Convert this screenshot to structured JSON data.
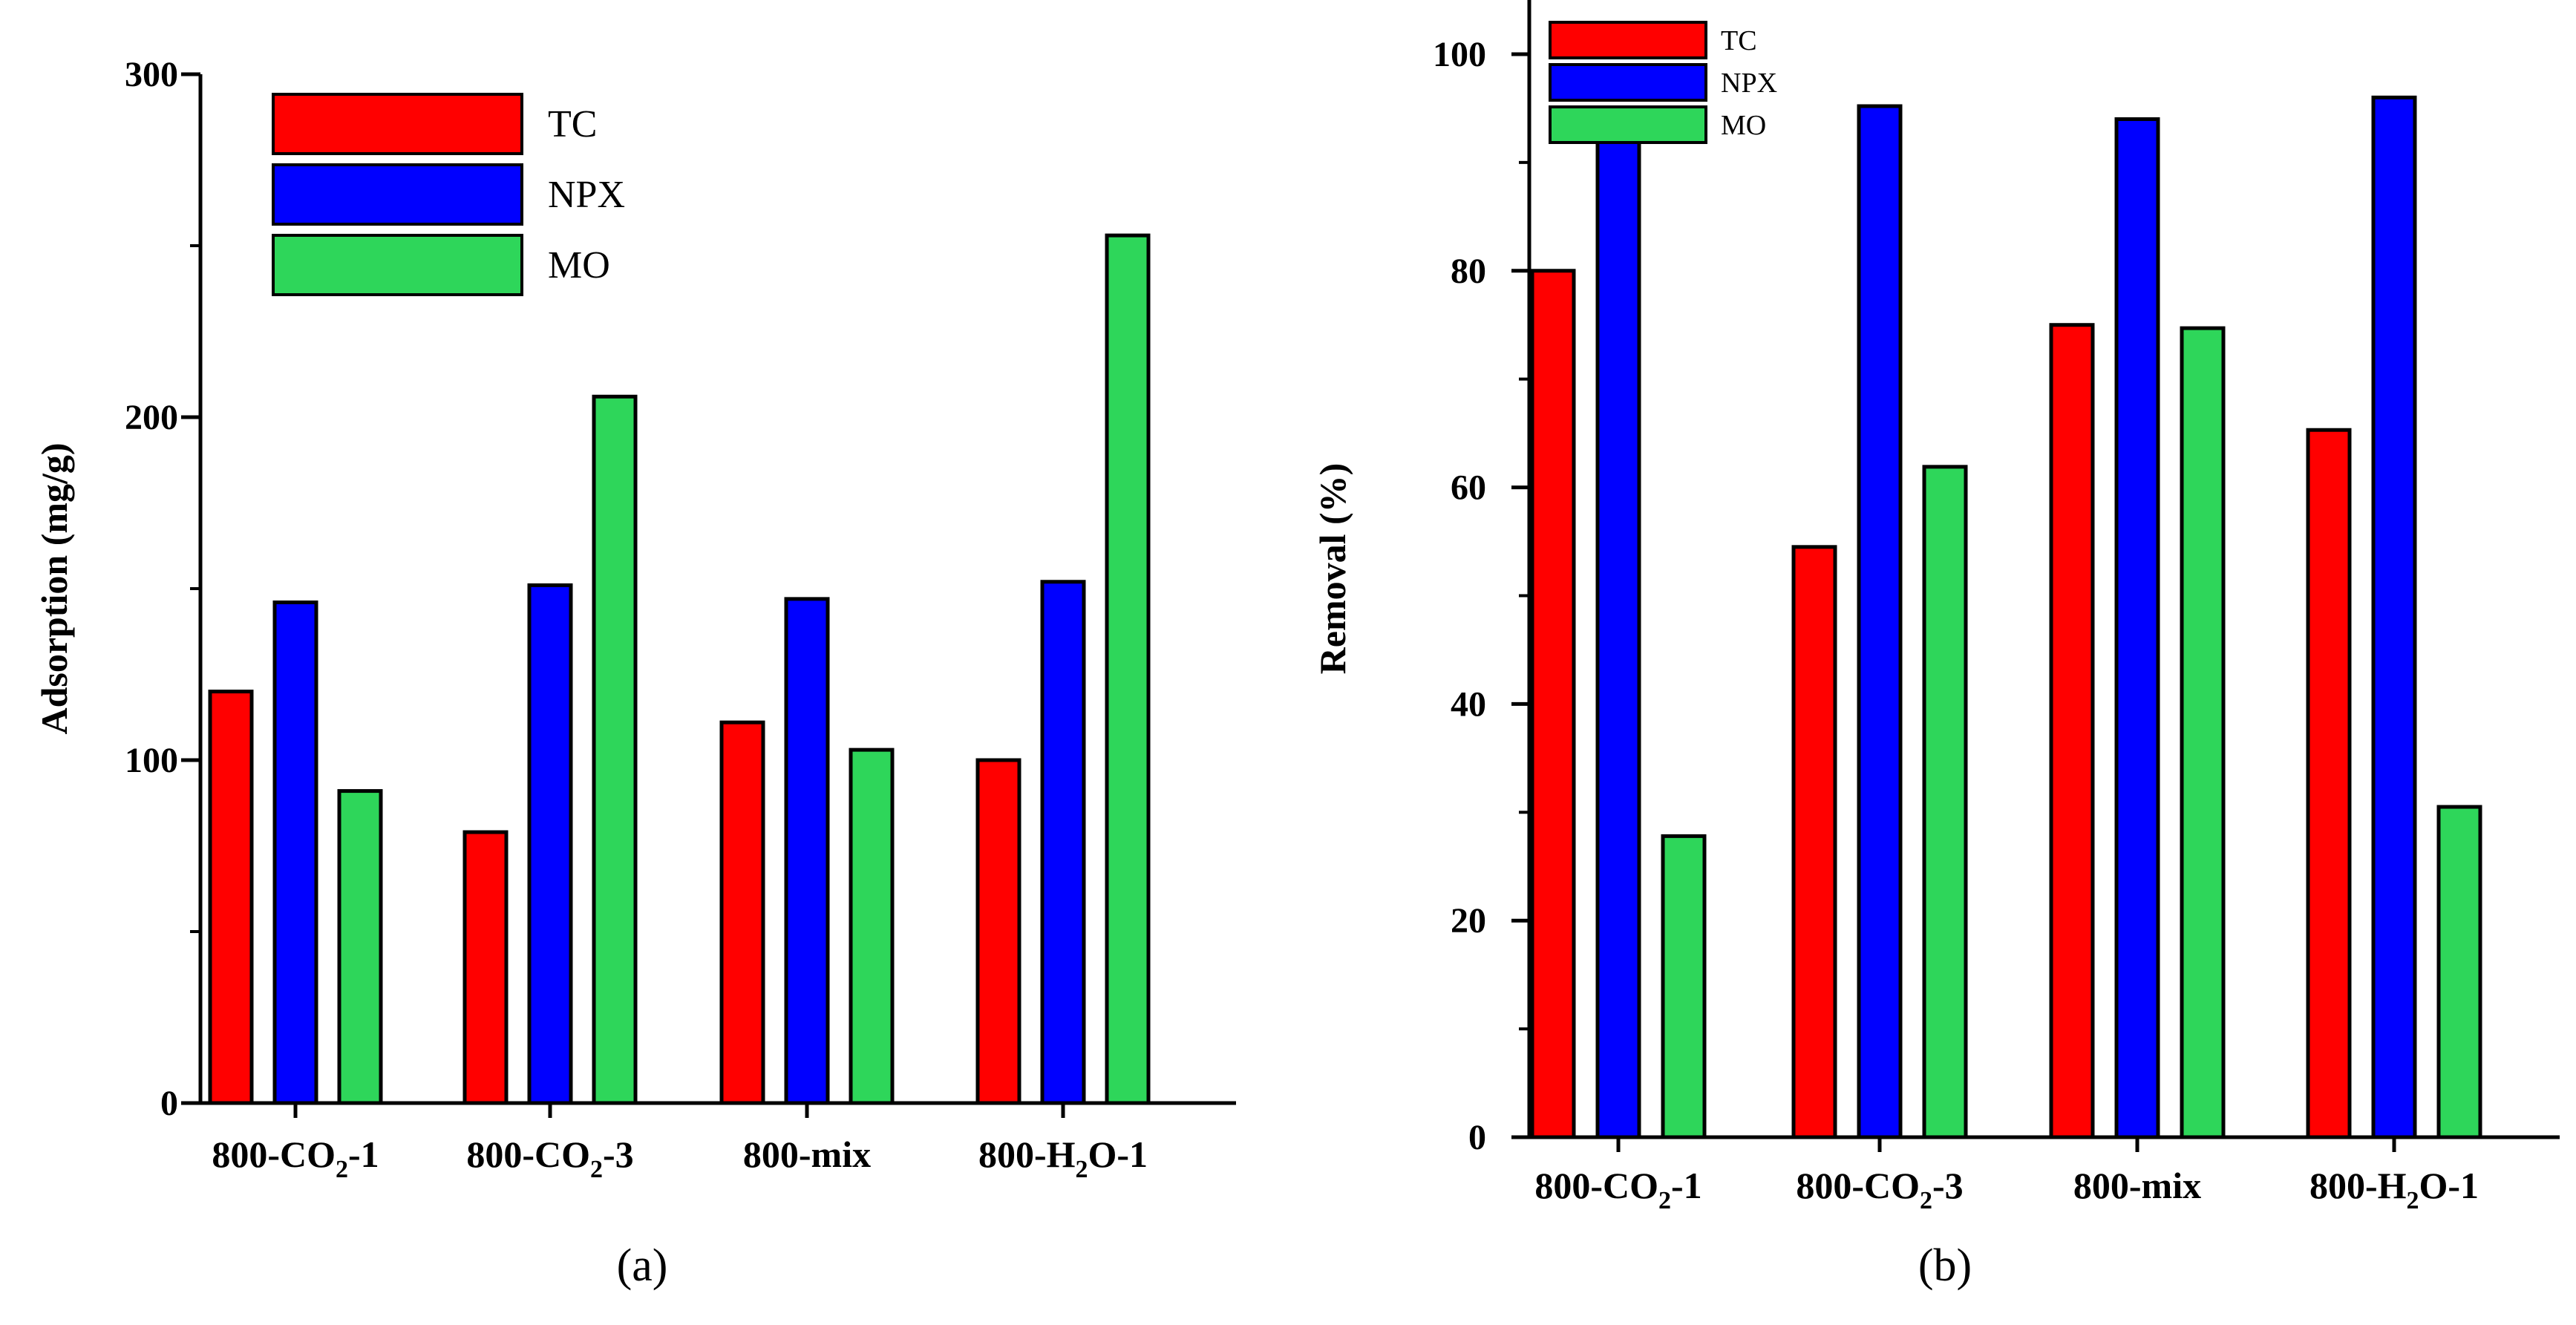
{
  "colors": {
    "TC": "#ff0000",
    "NPX": "#0000ff",
    "MO": "#2ed65a"
  },
  "chart_data": [
    {
      "type": "bar",
      "panel_label": "(a)",
      "ylabel": "Adsorption (mg/g)",
      "xlabel": "",
      "ylim": [
        0,
        300
      ],
      "y_major_ticks": [
        0,
        100,
        200,
        300
      ],
      "y_minor_step": 50,
      "categories": [
        {
          "pre": "800-CO",
          "sub": "2",
          "post": "-1"
        },
        {
          "pre": "800-CO",
          "sub": "2",
          "post": "-3"
        },
        {
          "pre": "800-mix",
          "sub": "",
          "post": ""
        },
        {
          "pre": "800-H",
          "sub": "2",
          "post": "O-1"
        }
      ],
      "legend": [
        "TC",
        "NPX",
        "MO"
      ],
      "legend_position": "top-left",
      "series": [
        {
          "name": "TC",
          "values": [
            120,
            79,
            111,
            100
          ]
        },
        {
          "name": "NPX",
          "values": [
            146,
            151,
            147,
            152
          ]
        },
        {
          "name": "MO",
          "values": [
            91,
            206,
            103,
            253
          ]
        }
      ]
    },
    {
      "type": "bar",
      "panel_label": "(b)",
      "ylabel": "Removal (%)",
      "xlabel": "",
      "ylim": [
        0,
        105
      ],
      "y_major_ticks": [
        0,
        20,
        40,
        60,
        80,
        100
      ],
      "y_minor_step": 10,
      "categories": [
        {
          "pre": "800-CO",
          "sub": "2",
          "post": "-1"
        },
        {
          "pre": "800-CO",
          "sub": "2",
          "post": "-3"
        },
        {
          "pre": "800-mix",
          "sub": "",
          "post": ""
        },
        {
          "pre": "800-H",
          "sub": "2",
          "post": "O-1"
        }
      ],
      "legend": [
        "TC",
        "NPX",
        "MO"
      ],
      "legend_position": "top-left",
      "series": [
        {
          "name": "TC",
          "values": [
            80,
            54.5,
            75,
            65.3
          ]
        },
        {
          "name": "NPX",
          "values": [
            93.2,
            95.2,
            94,
            96
          ]
        },
        {
          "name": "MO",
          "values": [
            27.8,
            61.9,
            74.7,
            30.5
          ]
        }
      ]
    }
  ]
}
